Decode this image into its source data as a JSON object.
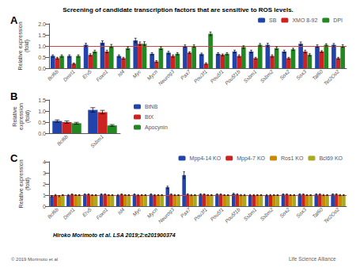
{
  "title": "Screening of candidate transcription factors that are sensitive to ROS levels.",
  "annotations": [
    {
      "text": "Hiroko Morimoto et al. LSA 2019;2:e201900374"
    },
    {
      "text": "© 2019 Morimoto et al"
    },
    {
      "text": "Life Science Alliance"
    }
  ],
  "chart_data": [
    {
      "type": "bar",
      "title": "A",
      "categories": [
        "Bcl6b",
        "Dmrt1",
        "Etv5",
        "Foxo1",
        "Id4",
        "Myc",
        "Mycn",
        "Neurog3",
        "Pax7",
        "Pou3f1",
        "Pou5f1",
        "Pou5f1b",
        "Ssbm1",
        "Ssbm2",
        "Sox2",
        "Sox3",
        "Tal60",
        "Tet2Oo2"
      ],
      "ylabel": "Relative expression\n(fold)",
      "ylim": [
        0,
        2.0
      ],
      "yticks": [
        {
          "value": 0,
          "label": "0.0"
        },
        {
          "value": 0.5,
          "label": "0.5"
        },
        {
          "value": 1.0,
          "label": "1.0"
        },
        {
          "value": 1.5,
          "label": "1.5"
        },
        {
          "value": 2.0,
          "label": "2.0"
        }
      ],
      "grid": false,
      "legend": "upper right",
      "reference_line": {
        "y": 1.0,
        "color": "#cc4444"
      },
      "series": [
        {
          "name": "SB",
          "color": "#2244aa",
          "values": [
            0.55,
            0.55,
            1.05,
            1.15,
            0.55,
            1.25,
            0.65,
            0.7,
            1.0,
            0.63,
            0.65,
            0.75,
            0.75,
            1.05,
            0.75,
            1.1,
            1.0,
            1.05
          ],
          "errors": [
            0.05,
            0.05,
            0.07,
            0.08,
            0.05,
            0.1,
            0.05,
            0.06,
            0.05,
            0.05,
            0.05,
            0.06,
            0.06,
            0.07,
            0.06,
            0.08,
            0.05,
            0.06
          ]
        },
        {
          "name": "XMO 8-92",
          "color": "#cc2222",
          "values": [
            0.45,
            0.2,
            0.6,
            0.75,
            0.45,
            1.1,
            0.3,
            0.55,
            0.7,
            0.2,
            0.6,
            0.55,
            0.45,
            0.55,
            0.45,
            0.75,
            0.75,
            0.45
          ],
          "errors": [
            0.04,
            0.03,
            0.05,
            0.06,
            0.04,
            0.08,
            0.04,
            0.05,
            0.04,
            0.04,
            0.04,
            0.05,
            0.04,
            0.05,
            0.04,
            0.06,
            0.04,
            0.04
          ]
        },
        {
          "name": "DPI",
          "color": "#228822",
          "values": [
            0.55,
            0.55,
            0.75,
            1.0,
            0.9,
            1.1,
            0.9,
            0.65,
            1.0,
            1.55,
            0.65,
            0.95,
            1.05,
            0.9,
            0.85,
            0.6,
            1.05,
            1.0
          ],
          "errors": [
            0.05,
            0.05,
            0.06,
            0.07,
            0.06,
            0.09,
            0.06,
            0.05,
            0.05,
            0.08,
            0.05,
            0.06,
            0.06,
            0.06,
            0.05,
            0.05,
            0.05,
            0.06
          ]
        }
      ]
    },
    {
      "type": "bar",
      "title": "B",
      "categories": [
        "Bcl6b",
        "Ssbm1"
      ],
      "ylabel": "Relative\nexpression\n(fold)",
      "ylim": [
        0,
        1.5
      ],
      "yticks": [
        {
          "value": 0,
          "label": "0.0"
        },
        {
          "value": 0.5,
          "label": "0.5"
        },
        {
          "value": 1.0,
          "label": "1.0"
        },
        {
          "value": 1.5,
          "label": "1.5"
        }
      ],
      "grid": false,
      "legend": "right",
      "series": [
        {
          "name": "BtNB",
          "color": "#2244aa",
          "values": [
            0.55,
            1.05
          ],
          "errors": [
            0.05,
            0.1
          ]
        },
        {
          "name": "BtX",
          "color": "#cc2222",
          "values": [
            0.5,
            0.95
          ],
          "errors": [
            0.05,
            0.08
          ]
        },
        {
          "name": "Apocynin",
          "color": "#228822",
          "values": [
            0.45,
            0.35
          ],
          "errors": [
            0.04,
            0.04
          ]
        }
      ]
    },
    {
      "type": "bar",
      "title": "C",
      "categories": [
        "Bcl6b",
        "Dmrt1",
        "Etv5",
        "Foxo1",
        "Id4",
        "Myc",
        "Mycn",
        "Neurog3",
        "Pax7",
        "Pou3f1",
        "Pou5f1",
        "Pou5f1b",
        "Ssbm1",
        "Ssbm2",
        "Sox2",
        "Sox3",
        "Tal60",
        "Tet2Oo2"
      ],
      "ylabel": "Relative expression\n(fold)",
      "ylim": [
        0,
        4.0
      ],
      "yticks": [
        0,
        1,
        2,
        3,
        4
      ],
      "grid": false,
      "legend": "upper right",
      "reference_line": {
        "y": 1.0,
        "color": "#cc4444"
      },
      "series": [
        {
          "name": "Mpp4-14 KO",
          "color": "#2244aa",
          "values": [
            0.9,
            1.0,
            1.05,
            1.05,
            1.0,
            1.05,
            1.05,
            1.7,
            2.8,
            1.05,
            1.05,
            1.1,
            1.0,
            1.0,
            1.05,
            1.05,
            1.05,
            1.05
          ],
          "errors": [
            0.05,
            0.05,
            0.05,
            0.06,
            0.05,
            0.05,
            0.06,
            0.1,
            0.3,
            0.06,
            0.06,
            0.06,
            0.05,
            0.05,
            0.06,
            0.06,
            0.06,
            0.06
          ]
        },
        {
          "name": "Mpp4-7 KO",
          "color": "#cc2222",
          "values": [
            1.0,
            1.05,
            1.05,
            1.05,
            1.05,
            1.0,
            1.0,
            1.05,
            1.05,
            1.05,
            1.05,
            1.05,
            1.0,
            1.0,
            1.05,
            1.05,
            1.05,
            1.05
          ],
          "errors": [
            0.05,
            0.05,
            0.05,
            0.05,
            0.05,
            0.05,
            0.05,
            0.06,
            0.06,
            0.05,
            0.05,
            0.06,
            0.05,
            0.05,
            0.05,
            0.05,
            0.06,
            0.06
          ]
        },
        {
          "name": "Ros1 KO",
          "color": "#cc8800",
          "values": [
            0.9,
            1.0,
            1.0,
            1.0,
            1.0,
            1.0,
            1.0,
            1.0,
            1.0,
            1.0,
            1.0,
            1.0,
            1.0,
            1.0,
            1.0,
            1.0,
            1.0,
            1.0
          ],
          "errors": [
            0.04,
            0.04,
            0.04,
            0.04,
            0.04,
            0.04,
            0.04,
            0.05,
            0.05,
            0.04,
            0.04,
            0.05,
            0.04,
            0.04,
            0.04,
            0.04,
            0.05,
            0.05
          ]
        },
        {
          "name": "Bcl69 KO",
          "color": "#aaaa22",
          "values": [
            1.0,
            1.0,
            1.0,
            1.0,
            1.0,
            1.0,
            1.0,
            1.0,
            1.0,
            1.0,
            1.0,
            1.0,
            1.0,
            1.0,
            1.0,
            1.0,
            1.0,
            1.0
          ],
          "errors": [
            0.04,
            0.04,
            0.04,
            0.04,
            0.04,
            0.04,
            0.04,
            0.04,
            0.04,
            0.04,
            0.04,
            0.05,
            0.04,
            0.04,
            0.04,
            0.04,
            0.04,
            0.04
          ]
        }
      ]
    }
  ]
}
